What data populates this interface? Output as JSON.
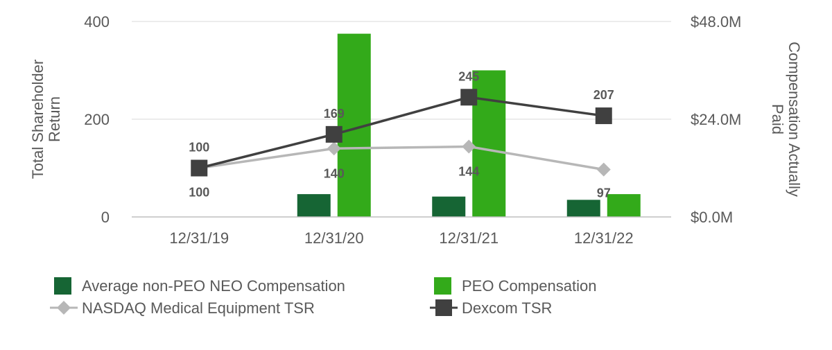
{
  "chart_data": {
    "type": "bar",
    "title": "",
    "categories": [
      "12/31/19",
      "12/31/20",
      "12/31/21",
      "12/31/22"
    ],
    "y_left": {
      "label_lines": [
        "Total Shareholder",
        "Return"
      ],
      "range": [
        0,
        400
      ],
      "ticks": [
        "0",
        "200",
        "400"
      ]
    },
    "y_right": {
      "label_lines": [
        "Compensation Actually",
        "Paid"
      ],
      "range": [
        0,
        48
      ],
      "unit": "$M",
      "ticks": [
        "$0.0M",
        "$24.0M",
        "$48.0M"
      ]
    },
    "grid": true,
    "legend_position": "bottom",
    "series": [
      {
        "name": "Average non-PEO NEO Compensation",
        "kind": "bar",
        "axis": "right",
        "color": "#166534",
        "values": [
          0,
          5.6,
          5.0,
          4.2
        ]
      },
      {
        "name": "PEO Compensation",
        "kind": "bar",
        "axis": "right",
        "color": "#33aa1a",
        "values": [
          0,
          45.0,
          36.0,
          5.6
        ]
      },
      {
        "name": "NASDAQ Medical Equipment TSR",
        "kind": "line",
        "axis": "left",
        "marker": "diamond",
        "color": "#b7b7b7",
        "values": [
          100,
          140,
          144,
          97
        ],
        "labels": [
          "100",
          "140",
          "144",
          "97"
        ]
      },
      {
        "name": "Dexcom TSR",
        "kind": "line",
        "axis": "left",
        "marker": "square",
        "color": "#404040",
        "values": [
          100,
          169,
          245,
          207
        ],
        "labels": [
          "100",
          "169",
          "245",
          "207"
        ]
      }
    ]
  }
}
